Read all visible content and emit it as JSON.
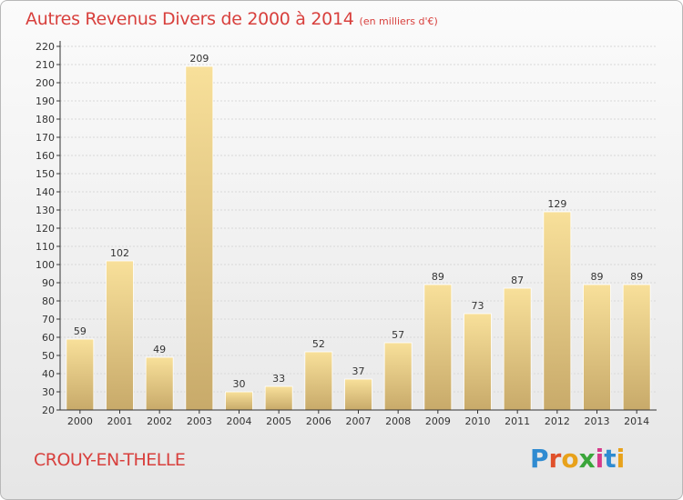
{
  "title": "Autres Revenus Divers de 2000 à 2014",
  "subtitle": "(en milliers d'€)",
  "commune": "CROUY-EN-THELLE",
  "logo": {
    "text": "Proxiti",
    "colors": [
      "#2f8bd1",
      "#e0502a",
      "#e8a21b",
      "#3aa53a",
      "#d63a8a",
      "#2f8bd1",
      "#e8a21b"
    ]
  },
  "colors": {
    "bar_top": "#f8e09a",
    "bar_bottom": "#c8aa6a",
    "text_red": "#d8403d",
    "axis": "#333333",
    "grid": "#d8d8d8"
  },
  "chart_data": {
    "type": "bar",
    "categories": [
      "2000",
      "2001",
      "2002",
      "2003",
      "2004",
      "2005",
      "2006",
      "2007",
      "2008",
      "2009",
      "2010",
      "2011",
      "2012",
      "2013",
      "2014"
    ],
    "values": [
      59,
      102,
      49,
      209,
      30,
      33,
      52,
      37,
      57,
      89,
      73,
      87,
      129,
      89,
      89
    ],
    "ylim": [
      20,
      220
    ],
    "ytick_step": 10,
    "grid": true,
    "data_labels": true
  }
}
